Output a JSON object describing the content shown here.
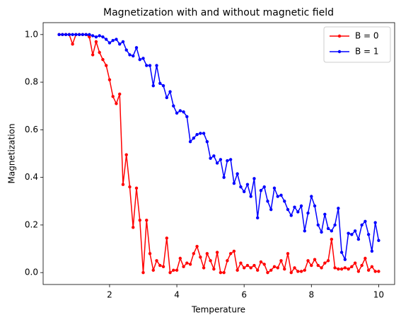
{
  "chart_data": {
    "type": "line",
    "title": "Magnetization with and without magnetic field",
    "xlabel": "Temperature",
    "ylabel": "Magnetization",
    "x": [
      0.5,
      0.6,
      0.7,
      0.8,
      0.9,
      1.0,
      1.1,
      1.2,
      1.3,
      1.4,
      1.5,
      1.6,
      1.7,
      1.8,
      1.9,
      2.0,
      2.1,
      2.2,
      2.3,
      2.4,
      2.5,
      2.6,
      2.7,
      2.8,
      2.9,
      3.0,
      3.1,
      3.2,
      3.3,
      3.4,
      3.5,
      3.6,
      3.7,
      3.8,
      3.9,
      4.0,
      4.1,
      4.2,
      4.3,
      4.4,
      4.5,
      4.6,
      4.7,
      4.8,
      4.9,
      5.0,
      5.1,
      5.2,
      5.3,
      5.4,
      5.5,
      5.6,
      5.7,
      5.8,
      5.9,
      6.0,
      6.1,
      6.2,
      6.3,
      6.4,
      6.5,
      6.6,
      6.7,
      6.8,
      6.9,
      7.0,
      7.1,
      7.2,
      7.3,
      7.4,
      7.5,
      7.6,
      7.7,
      7.8,
      7.9,
      8.0,
      8.1,
      8.2,
      8.3,
      8.4,
      8.5,
      8.6,
      8.7,
      8.8,
      8.9,
      9.0,
      9.1,
      9.2,
      9.3,
      9.4,
      9.5,
      9.6,
      9.7,
      9.8,
      9.9,
      10.0
    ],
    "series": [
      {
        "name": "B = 0",
        "color": "#ff0000",
        "values": [
          1,
          1,
          1,
          1,
          0.96,
          1,
          1,
          1,
          1,
          0.99,
          0.915,
          0.97,
          0.925,
          0.895,
          0.87,
          0.81,
          0.74,
          0.71,
          0.75,
          0.37,
          0.495,
          0.36,
          0.19,
          0.355,
          0.22,
          0.0,
          0.22,
          0.08,
          0.01,
          0.05,
          0.03,
          0.025,
          0.145,
          0.0,
          0.01,
          0.01,
          0.06,
          0.025,
          0.04,
          0.035,
          0.08,
          0.11,
          0.065,
          0.02,
          0.08,
          0.05,
          0.015,
          0.085,
          0.0,
          0.0,
          0.05,
          0.08,
          0.09,
          0.01,
          0.04,
          0.02,
          0.03,
          0.02,
          0.03,
          0.01,
          0.045,
          0.035,
          0.0,
          0.01,
          0.025,
          0.02,
          0.05,
          0.015,
          0.08,
          0.0,
          0.02,
          0.005,
          0.005,
          0.01,
          0.05,
          0.03,
          0.055,
          0.03,
          0.02,
          0.04,
          0.05,
          0.14,
          0.02,
          0.015,
          0.015,
          0.02,
          0.015,
          0.025,
          0.04,
          0.005,
          0.03,
          0.06,
          0.01,
          0.025,
          0.005,
          0.005
        ]
      },
      {
        "name": "B = 1",
        "color": "#0000ff",
        "values": [
          1,
          1,
          1,
          1,
          1,
          1,
          1,
          1,
          1,
          1,
          0.995,
          0.99,
          0.995,
          0.99,
          0.98,
          0.965,
          0.975,
          0.98,
          0.96,
          0.97,
          0.935,
          0.915,
          0.91,
          0.945,
          0.895,
          0.9,
          0.87,
          0.87,
          0.785,
          0.87,
          0.795,
          0.785,
          0.735,
          0.76,
          0.7,
          0.67,
          0.68,
          0.675,
          0.655,
          0.55,
          0.565,
          0.58,
          0.585,
          0.585,
          0.55,
          0.48,
          0.49,
          0.46,
          0.475,
          0.4,
          0.47,
          0.475,
          0.375,
          0.415,
          0.36,
          0.34,
          0.37,
          0.32,
          0.395,
          0.23,
          0.345,
          0.36,
          0.3,
          0.265,
          0.355,
          0.32,
          0.325,
          0.3,
          0.265,
          0.24,
          0.275,
          0.255,
          0.28,
          0.175,
          0.25,
          0.32,
          0.28,
          0.2,
          0.17,
          0.245,
          0.185,
          0.175,
          0.2,
          0.27,
          0.085,
          0.055,
          0.165,
          0.16,
          0.175,
          0.14,
          0.2,
          0.215,
          0.16,
          0.09,
          0.21,
          0.135
        ]
      }
    ],
    "xlim": [
      0.025,
      10.475
    ],
    "ylim": [
      -0.05,
      1.05
    ],
    "xticks": [
      2,
      4,
      6,
      8,
      10
    ],
    "yticks": [
      {
        "value": 0,
        "label": "0.0"
      },
      {
        "value": 0.2,
        "label": "0.2"
      },
      {
        "value": 0.4,
        "label": "0.4"
      },
      {
        "value": 0.6,
        "label": "0.6"
      },
      {
        "value": 0.8,
        "label": "0.8"
      },
      {
        "value": 1,
        "label": "1.0"
      }
    ],
    "legend": "upper right"
  }
}
